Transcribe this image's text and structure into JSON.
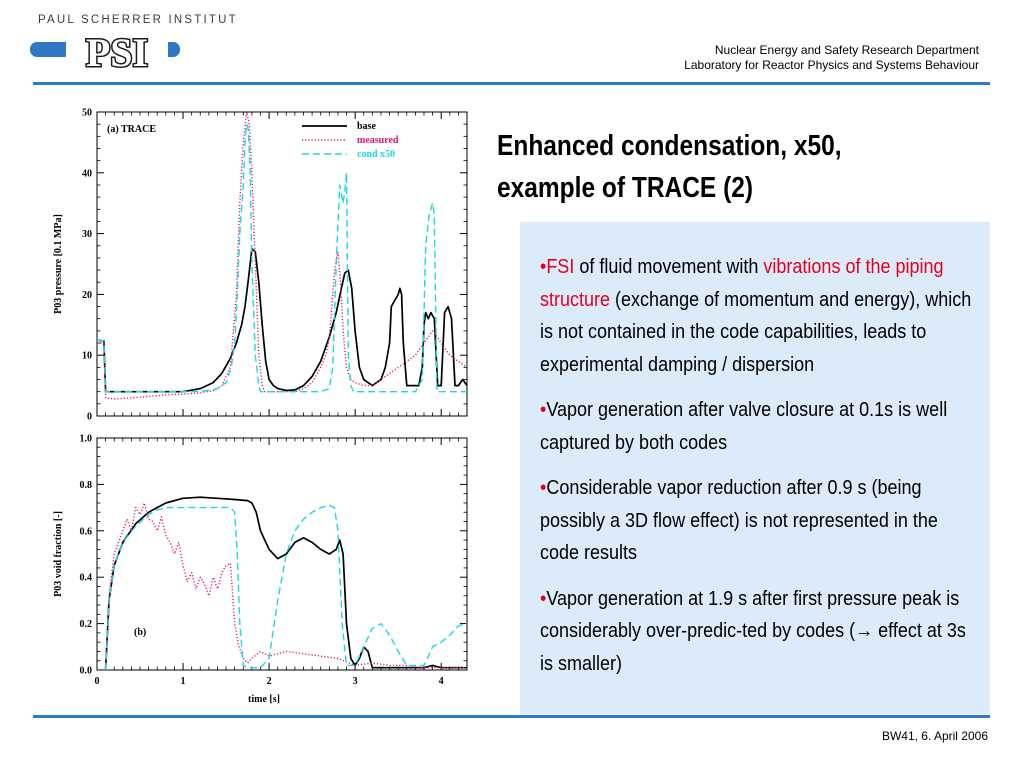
{
  "header": {
    "institute": "PAUL SCHERRER INSTITUT",
    "logo": "PSI",
    "department": "Nuclear Energy and Safety Research Department",
    "laboratory": "Laboratory for Reactor Physics and Systems Behaviour"
  },
  "slide": {
    "title_line1": "Enhanced condensation, x50,",
    "title_line2": "example of TRACE (2)"
  },
  "bullets": [
    {
      "parts": [
        {
          "text": "FSI",
          "style": "red"
        },
        {
          "text": " of fluid movement with ",
          "style": "normal"
        },
        {
          "text": "vibrations of the piping structure",
          "style": "red"
        },
        {
          "text": " (exchange of momentum and energy), which is not contained in the code capabilities, leads to experimental damping / dispersion",
          "style": "normal"
        }
      ]
    },
    {
      "parts": [
        {
          "text": "Vapor generation after valve closure at 0.1s is well captured by both codes",
          "style": "normal"
        }
      ]
    },
    {
      "parts": [
        {
          "text": "Considerable vapor reduction after 0.9 s (being possibly a 3D flow effect) is not represented in the code results",
          "style": "normal"
        }
      ]
    },
    {
      "parts": [
        {
          "text": "Vapor generation at 1.9 s after first pressure peak is considerably over-predic-ted by codes (",
          "style": "normal"
        },
        {
          "text": "→",
          "style": "normal"
        },
        {
          "text": " effect at 3s is smaller)",
          "style": "normal"
        }
      ]
    }
  ],
  "footer": {
    "text": "BW41, 6. April 2006"
  },
  "colors": {
    "accent": "#2f78c6",
    "highlight": "#e3001b",
    "box": "#dcebfa",
    "base": "#000000",
    "measured": "#e0157d",
    "cond": "#19d9e6"
  },
  "chart_data": [
    {
      "type": "line",
      "label": "(a) TRACE",
      "ylabel": "P03 pressure [0.1 MPa]",
      "xlim": [
        0,
        4.3
      ],
      "ylim": [
        0,
        50
      ],
      "yticks": [
        "0",
        "10",
        "20",
        "30",
        "40",
        "50"
      ],
      "legend": {
        "position": "top-right",
        "entries": [
          "base",
          "measured",
          "cond x50"
        ]
      },
      "series": [
        {
          "name": "base",
          "color": "#000000",
          "dash": "solid",
          "x": [
            0,
            0.08,
            0.1,
            0.2,
            0.4,
            0.6,
            0.8,
            1.0,
            1.2,
            1.35,
            1.45,
            1.55,
            1.62,
            1.68,
            1.72,
            1.76,
            1.8,
            1.84,
            1.88,
            1.92,
            1.96,
            2.0,
            2.05,
            2.1,
            2.2,
            2.3,
            2.4,
            2.5,
            2.6,
            2.7,
            2.78,
            2.84,
            2.88,
            2.92,
            2.96,
            3.0,
            3.05,
            3.1,
            3.2,
            3.3,
            3.35,
            3.4,
            3.42,
            3.46,
            3.5,
            3.52,
            3.54,
            3.56,
            3.6,
            3.65,
            3.7,
            3.74,
            3.78,
            3.8,
            3.82,
            3.85,
            3.88,
            3.92,
            3.96,
            4.0,
            4.04,
            4.08,
            4.12,
            4.16,
            4.2,
            4.25,
            4.3
          ],
          "y": [
            12.5,
            12.3,
            4,
            4,
            4,
            4,
            4,
            4,
            4.5,
            5.5,
            7,
            9.5,
            12,
            15,
            18,
            22.5,
            27.5,
            27,
            22,
            15,
            9,
            6,
            5,
            4.5,
            4.2,
            4.3,
            5,
            6.5,
            9,
            13,
            17,
            21,
            23.5,
            24,
            21,
            14,
            8,
            6,
            5,
            6,
            8,
            12,
            18,
            19,
            20,
            21,
            20,
            12,
            5,
            5,
            5,
            5,
            8,
            15,
            17,
            16,
            17,
            16,
            5,
            5,
            17,
            18,
            16,
            5,
            5,
            6,
            5
          ]
        },
        {
          "name": "measured",
          "color": "#e0157d",
          "dash": "dotted",
          "x": [
            0,
            0.08,
            0.1,
            0.2,
            0.4,
            0.6,
            0.8,
            1.0,
            1.2,
            1.35,
            1.45,
            1.55,
            1.62,
            1.66,
            1.7,
            1.74,
            1.77,
            1.8,
            1.84,
            1.88,
            1.92,
            1.95,
            2.0,
            2.1,
            2.2,
            2.3,
            2.4,
            2.5,
            2.6,
            2.66,
            2.7,
            2.73,
            2.76,
            2.8,
            2.83,
            2.86,
            2.9,
            2.95,
            3.0,
            3.1,
            3.2,
            3.3,
            3.4,
            3.5,
            3.6,
            3.7,
            3.8,
            3.9,
            4.0,
            4.1,
            4.2,
            4.3
          ],
          "y": [
            12,
            12,
            3,
            2.8,
            3,
            3.2,
            3.5,
            3.6,
            3.8,
            4.2,
            5,
            8,
            20,
            35,
            45,
            50,
            48,
            40,
            25,
            10,
            5,
            4,
            4,
            4,
            4,
            4,
            4.5,
            5.5,
            8,
            10,
            13,
            18,
            24,
            27,
            22,
            14,
            8,
            6,
            5.5,
            5,
            5,
            6,
            7,
            8,
            9,
            10,
            12,
            14,
            12,
            10,
            9,
            8
          ]
        },
        {
          "name": "cond x50",
          "color": "#19d9e6",
          "dash": "dashed",
          "x": [
            0,
            0.08,
            0.1,
            0.2,
            0.5,
            0.8,
            1.1,
            1.3,
            1.4,
            1.5,
            1.56,
            1.6,
            1.63,
            1.66,
            1.7,
            1.72,
            1.74,
            1.76,
            1.78,
            1.8,
            1.84,
            1.88,
            1.9,
            2.0,
            2.2,
            2.4,
            2.6,
            2.7,
            2.74,
            2.78,
            2.82,
            2.86,
            2.88,
            2.9,
            2.92,
            2.95,
            2.98,
            3.0,
            3.2,
            3.4,
            3.6,
            3.7,
            3.78,
            3.82,
            3.86,
            3.9,
            3.92,
            3.95,
            4.0,
            4.2,
            4.3
          ],
          "y": [
            12.5,
            12.3,
            4,
            4,
            4,
            4,
            4,
            4.2,
            4.5,
            5.5,
            8,
            12,
            20,
            30,
            38,
            45,
            48,
            47,
            40,
            25,
            10,
            5,
            4,
            4,
            4,
            4,
            4,
            4.5,
            8,
            25,
            38,
            35,
            37,
            40,
            10,
            5,
            4,
            4,
            4,
            4,
            4,
            4,
            6,
            28,
            33,
            35,
            33,
            4,
            4,
            4,
            4
          ]
        }
      ]
    },
    {
      "type": "line",
      "label": "(b)",
      "ylabel": "P03 void fraction [-]",
      "xlabel": "time [s]",
      "xlim": [
        0,
        4.3
      ],
      "ylim": [
        0,
        1
      ],
      "xticks": [
        "0",
        "1",
        "2",
        "3",
        "4"
      ],
      "yticks": [
        "0.0",
        "0.2",
        "0.4",
        "0.6",
        "0.8",
        "1.0"
      ],
      "series": [
        {
          "name": "base",
          "color": "#000000",
          "dash": "solid",
          "x": [
            0.1,
            0.14,
            0.2,
            0.3,
            0.45,
            0.6,
            0.8,
            1.0,
            1.2,
            1.4,
            1.6,
            1.75,
            1.8,
            1.85,
            1.9,
            2.0,
            2.1,
            2.2,
            2.3,
            2.4,
            2.5,
            2.6,
            2.7,
            2.78,
            2.82,
            2.86,
            2.9,
            2.95,
            3.0,
            3.05,
            3.1,
            3.15,
            3.2,
            3.25,
            3.3,
            3.4,
            3.5,
            3.6,
            3.7,
            3.8,
            3.9,
            4.0,
            4.1,
            4.2,
            4.3
          ],
          "y": [
            0,
            0.3,
            0.45,
            0.55,
            0.63,
            0.68,
            0.72,
            0.74,
            0.745,
            0.74,
            0.735,
            0.73,
            0.72,
            0.68,
            0.6,
            0.52,
            0.48,
            0.5,
            0.55,
            0.57,
            0.55,
            0.52,
            0.5,
            0.52,
            0.56,
            0.5,
            0.2,
            0.05,
            0.02,
            0.05,
            0.1,
            0.08,
            0.01,
            0.01,
            0.01,
            0.01,
            0.01,
            0.01,
            0.01,
            0.01,
            0.02,
            0.01,
            0.01,
            0.01,
            0.01
          ]
        },
        {
          "name": "measured",
          "color": "#e0157d",
          "dash": "dotted",
          "x": [
            0.1,
            0.15,
            0.2,
            0.3,
            0.35,
            0.4,
            0.45,
            0.5,
            0.55,
            0.6,
            0.65,
            0.7,
            0.75,
            0.8,
            0.85,
            0.9,
            0.95,
            1.0,
            1.05,
            1.1,
            1.15,
            1.2,
            1.25,
            1.3,
            1.35,
            1.4,
            1.45,
            1.5,
            1.55,
            1.6,
            1.65,
            1.7,
            1.75,
            1.8,
            1.9,
            2.0,
            2.2,
            2.4,
            2.6,
            2.8,
            3.0,
            3.2,
            3.4,
            3.6,
            3.8,
            4.0,
            4.2,
            4.3
          ],
          "y": [
            0,
            0.35,
            0.5,
            0.6,
            0.65,
            0.6,
            0.7,
            0.67,
            0.72,
            0.65,
            0.64,
            0.6,
            0.66,
            0.58,
            0.55,
            0.5,
            0.55,
            0.45,
            0.38,
            0.42,
            0.35,
            0.4,
            0.37,
            0.32,
            0.4,
            0.35,
            0.42,
            0.45,
            0.46,
            0.2,
            0.1,
            0.05,
            0.03,
            0.05,
            0.08,
            0.06,
            0.08,
            0.07,
            0.06,
            0.05,
            0.02,
            0.03,
            0.02,
            0.02,
            0.01,
            0.01,
            0.01,
            0.01
          ]
        },
        {
          "name": "cond x50",
          "color": "#19d9e6",
          "dash": "dashed",
          "x": [
            0.1,
            0.14,
            0.2,
            0.3,
            0.45,
            0.6,
            0.7,
            0.8,
            1.0,
            1.2,
            1.4,
            1.55,
            1.6,
            1.63,
            1.66,
            1.7,
            1.75,
            1.8,
            1.9,
            2.0,
            2.1,
            2.2,
            2.3,
            2.4,
            2.5,
            2.6,
            2.7,
            2.76,
            2.8,
            2.85,
            2.9,
            3.0,
            3.1,
            3.2,
            3.3,
            3.4,
            3.5,
            3.6,
            3.7,
            3.8,
            3.9,
            4.0,
            4.1,
            4.2,
            4.3
          ],
          "y": [
            0,
            0.3,
            0.45,
            0.55,
            0.62,
            0.67,
            0.69,
            0.7,
            0.7,
            0.7,
            0.7,
            0.7,
            0.68,
            0.5,
            0.2,
            0.02,
            0.01,
            0.01,
            0.01,
            0.05,
            0.3,
            0.5,
            0.6,
            0.65,
            0.68,
            0.7,
            0.71,
            0.7,
            0.6,
            0.2,
            0.02,
            0.02,
            0.1,
            0.18,
            0.2,
            0.15,
            0.08,
            0.02,
            0.02,
            0.02,
            0.1,
            0.12,
            0.15,
            0.19,
            0.2
          ]
        }
      ]
    }
  ]
}
